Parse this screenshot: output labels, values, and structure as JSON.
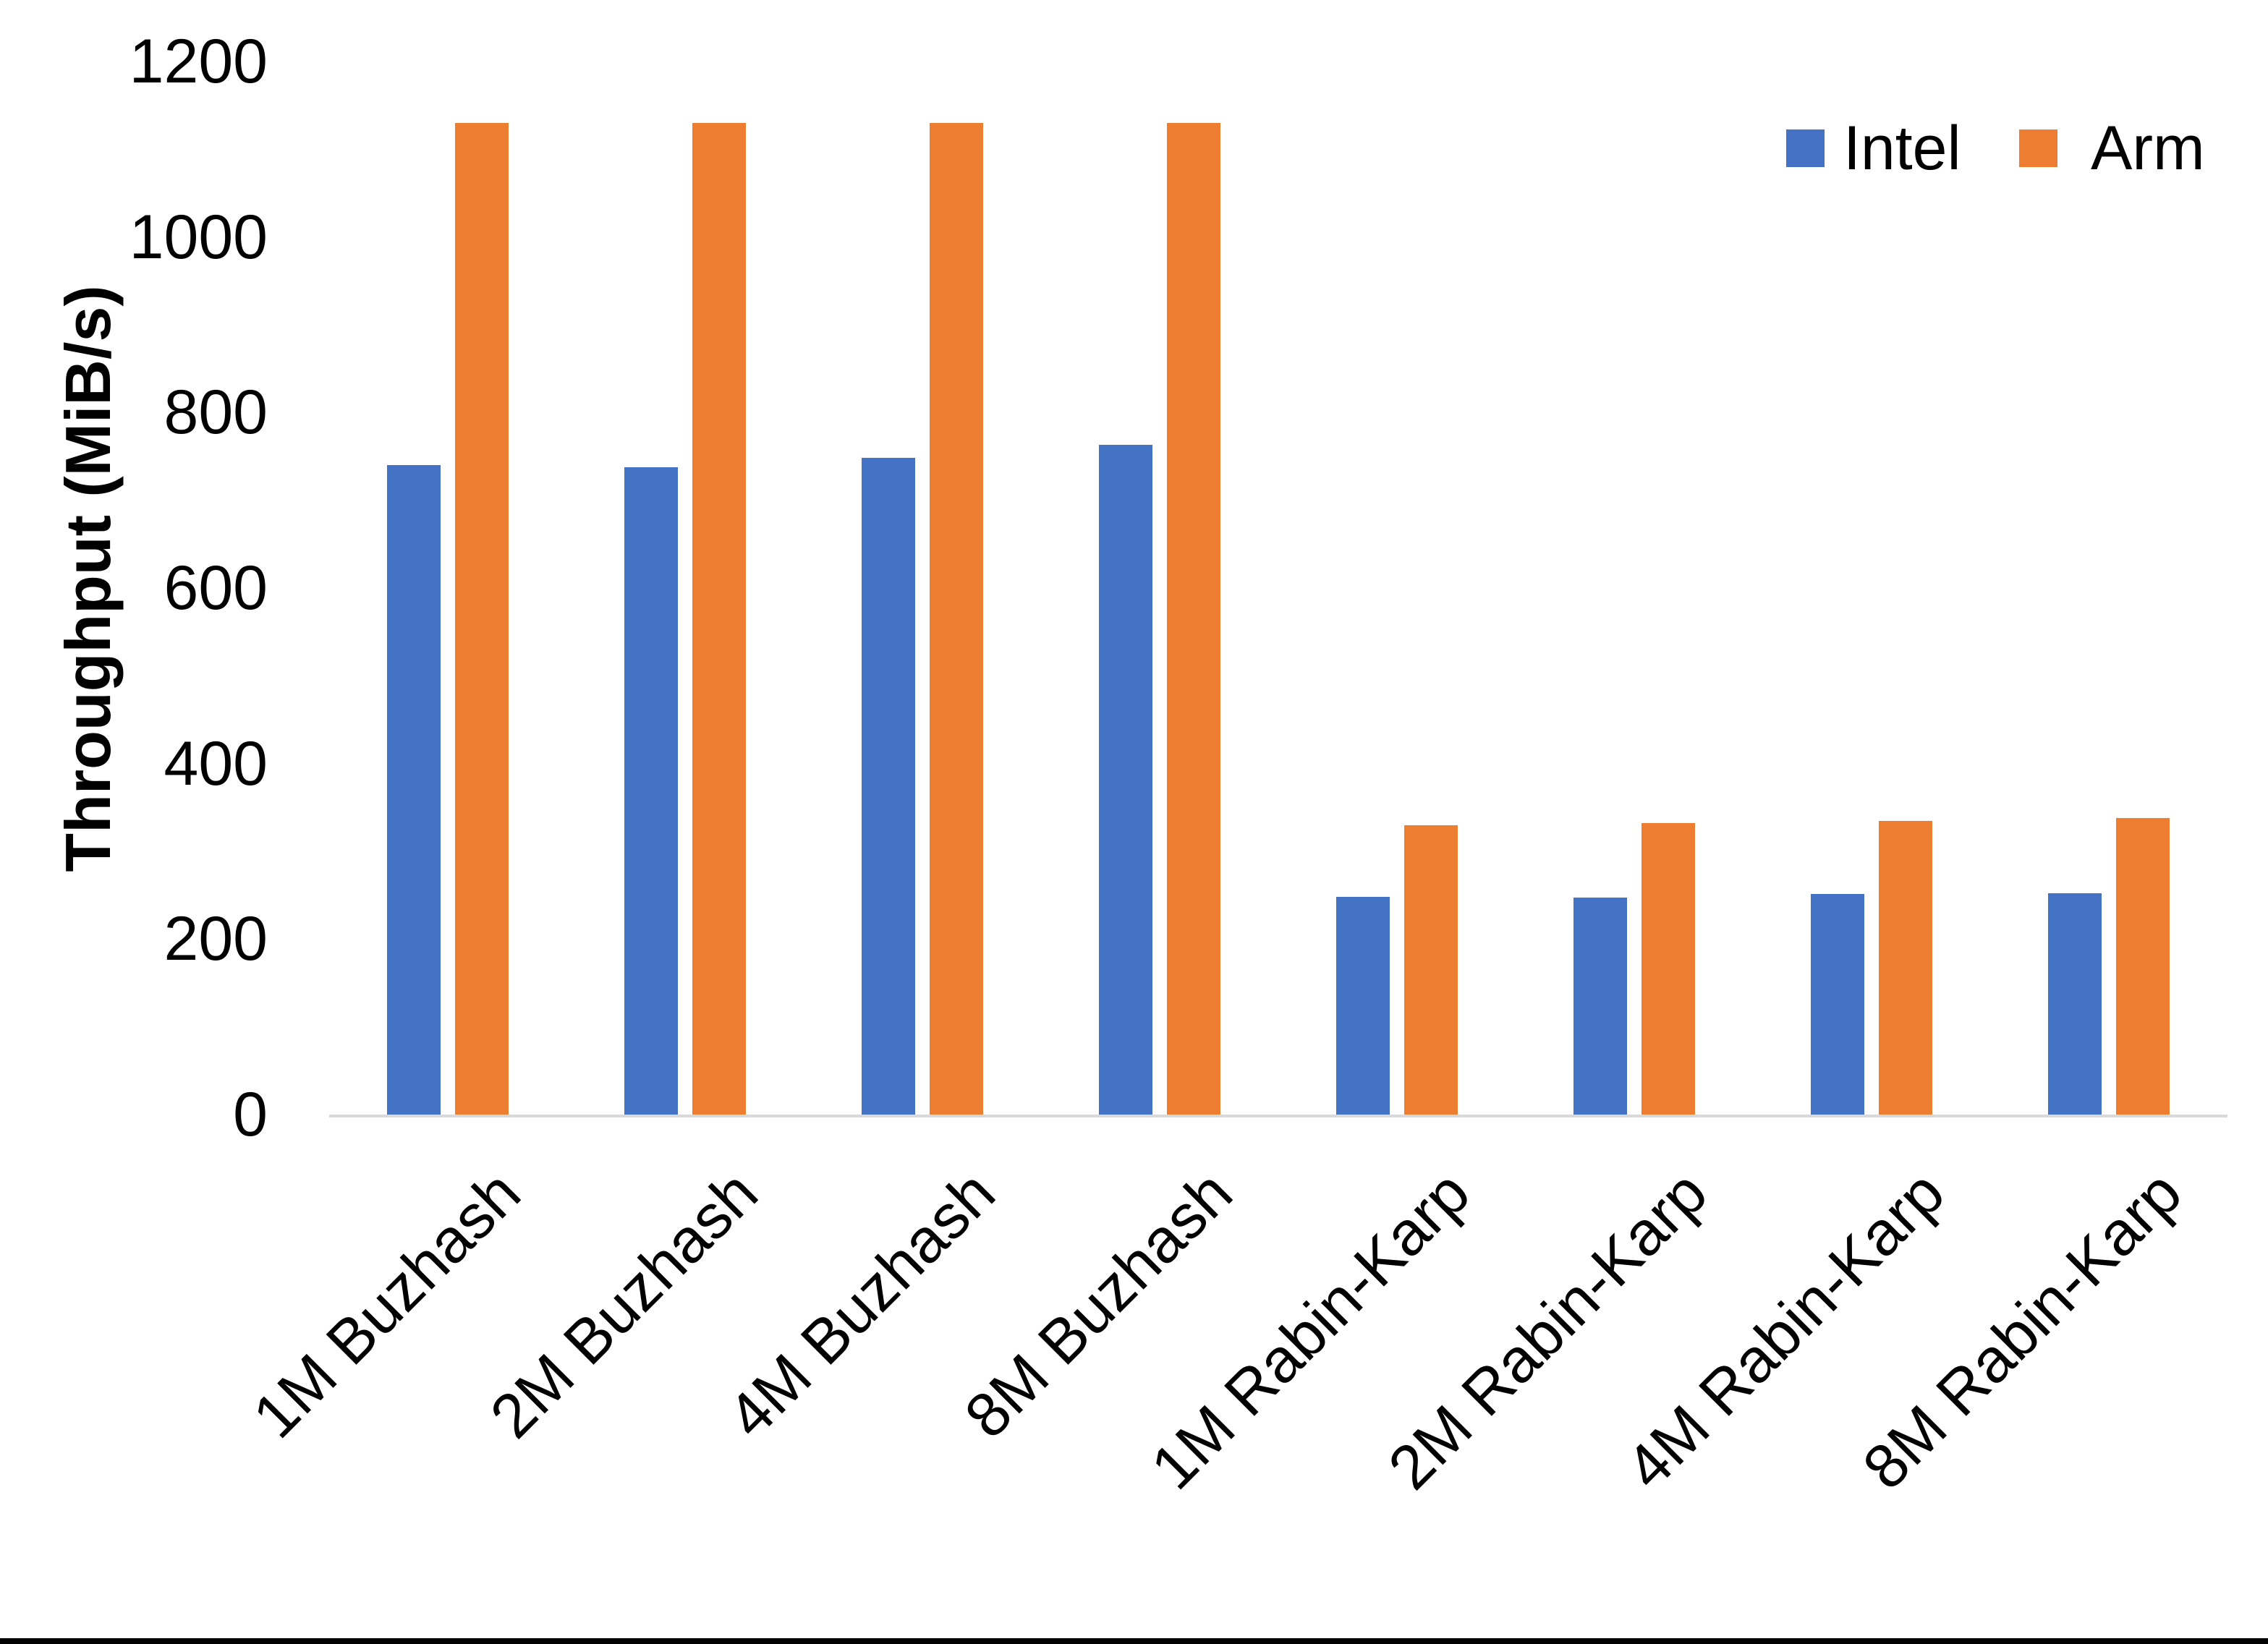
{
  "chart_data": {
    "type": "bar",
    "title": "",
    "xlabel": "",
    "ylabel": "Throughput (MiB/s)",
    "ylim": [
      0,
      1200
    ],
    "ytick_step": 200,
    "yticks": [
      "0",
      "200",
      "400",
      "600",
      "800",
      "1000",
      "1200"
    ],
    "grid": "off",
    "legend_position": "top-right",
    "categories": [
      "1M Buzhash",
      "2M Buzhash",
      "4M Buzhash",
      "8M Buzhash",
      "1M Rabin-Karp",
      "2M Rabin-Karp",
      "4M Rabin-Karp",
      "8M Rabin-Karp"
    ],
    "series": [
      {
        "name": "Intel",
        "color": "#4472C4",
        "values": [
          740,
          738,
          748,
          763,
          248,
          247,
          251,
          252
        ]
      },
      {
        "name": "Arm",
        "color": "#ED7D31",
        "values": [
          1130,
          1130,
          1130,
          1130,
          330,
          332,
          335,
          338
        ]
      }
    ]
  },
  "legend": {
    "items": [
      {
        "label": "Intel",
        "color": "#4472C4"
      },
      {
        "label": "Arm",
        "color": "#ED7D31"
      }
    ]
  },
  "colors": {
    "axis_line": "#d9d9d9",
    "text": "#000000",
    "background": "#ffffff",
    "bottom_border": "#000000"
  }
}
